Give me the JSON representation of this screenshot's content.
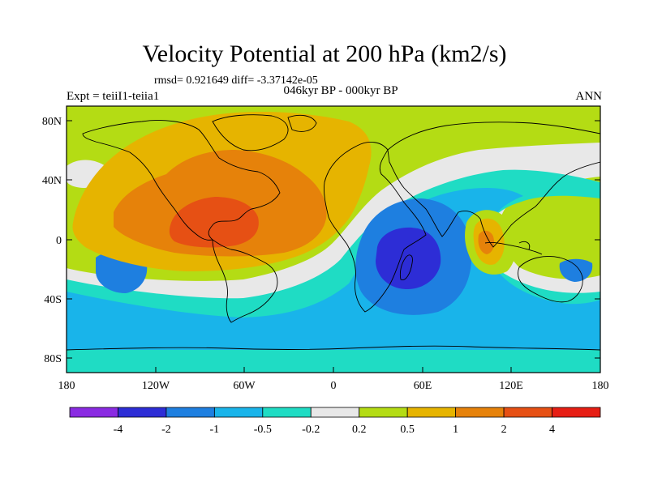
{
  "title": "Velocity Potential at 200 hPa (km2/s)",
  "stats": "rmsd= 0.921649 diff= -3.37142e-05",
  "experiment": "Expt = teiiI1-teiia1",
  "period": "046kyr BP - 000kyr BP",
  "season": "ANN",
  "lat_ticks": [
    "80N",
    "40N",
    "0",
    "40S",
    "80S"
  ],
  "lon_ticks": [
    "180",
    "120W",
    "60W",
    "0",
    "60E",
    "120E",
    "180"
  ],
  "colorbar": {
    "labels": [
      "-4",
      "-2",
      "-1",
      "-0.5",
      "-0.2",
      "0.2",
      "0.5",
      "1",
      "2",
      "4"
    ],
    "colors": [
      "#8a2be2",
      "#2d2dd6",
      "#1e7fe0",
      "#19b4ea",
      "#1fdcc4",
      "#e8e8e8",
      "#b4dc14",
      "#e6b400",
      "#e6820a",
      "#e65014",
      "#e61e14"
    ]
  },
  "regions": [
    {
      "name": "negative-anomaly-atlantic-southern",
      "level": "-1",
      "color": "#19b4ea"
    },
    {
      "name": "negative-anomaly-indian-ocean-core",
      "level": "-4",
      "color": "#2d2dd6"
    },
    {
      "name": "positive-anomaly-atlantic-core",
      "level": "4",
      "color": "#e65014"
    }
  ]
}
